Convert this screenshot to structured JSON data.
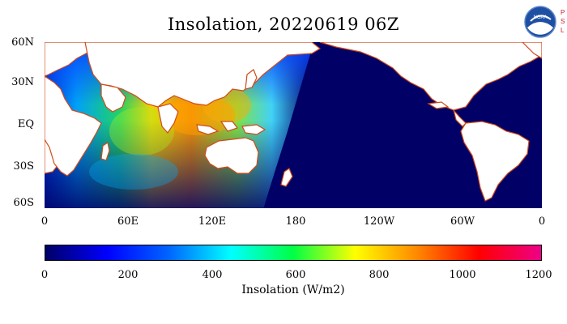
{
  "title": "Insolation, 20220619 06Z",
  "logo": {
    "noaa_text": "NOAA",
    "psl_letters": [
      "P",
      "S",
      "L"
    ]
  },
  "map": {
    "lat_labels": [
      "60N",
      "30N",
      "EQ",
      "30S",
      "60S"
    ],
    "lon_labels": [
      "0",
      "60E",
      "120E",
      "180",
      "120W",
      "60W",
      "0"
    ],
    "ocean_color": "#000066",
    "land_color": "#ffffff",
    "coast_color": "#d04a1a"
  },
  "colorbar": {
    "labels": [
      "0",
      "200",
      "400",
      "600",
      "800",
      "1000",
      "1200"
    ],
    "title": "Insolation (W/m2)",
    "range": [
      0,
      1200
    ],
    "stops": [
      "#000066",
      "#0000ff",
      "#0066ff",
      "#00ffff",
      "#00ff44",
      "#ffff00",
      "#ff8800",
      "#ff0000",
      "#ee0088"
    ]
  }
}
